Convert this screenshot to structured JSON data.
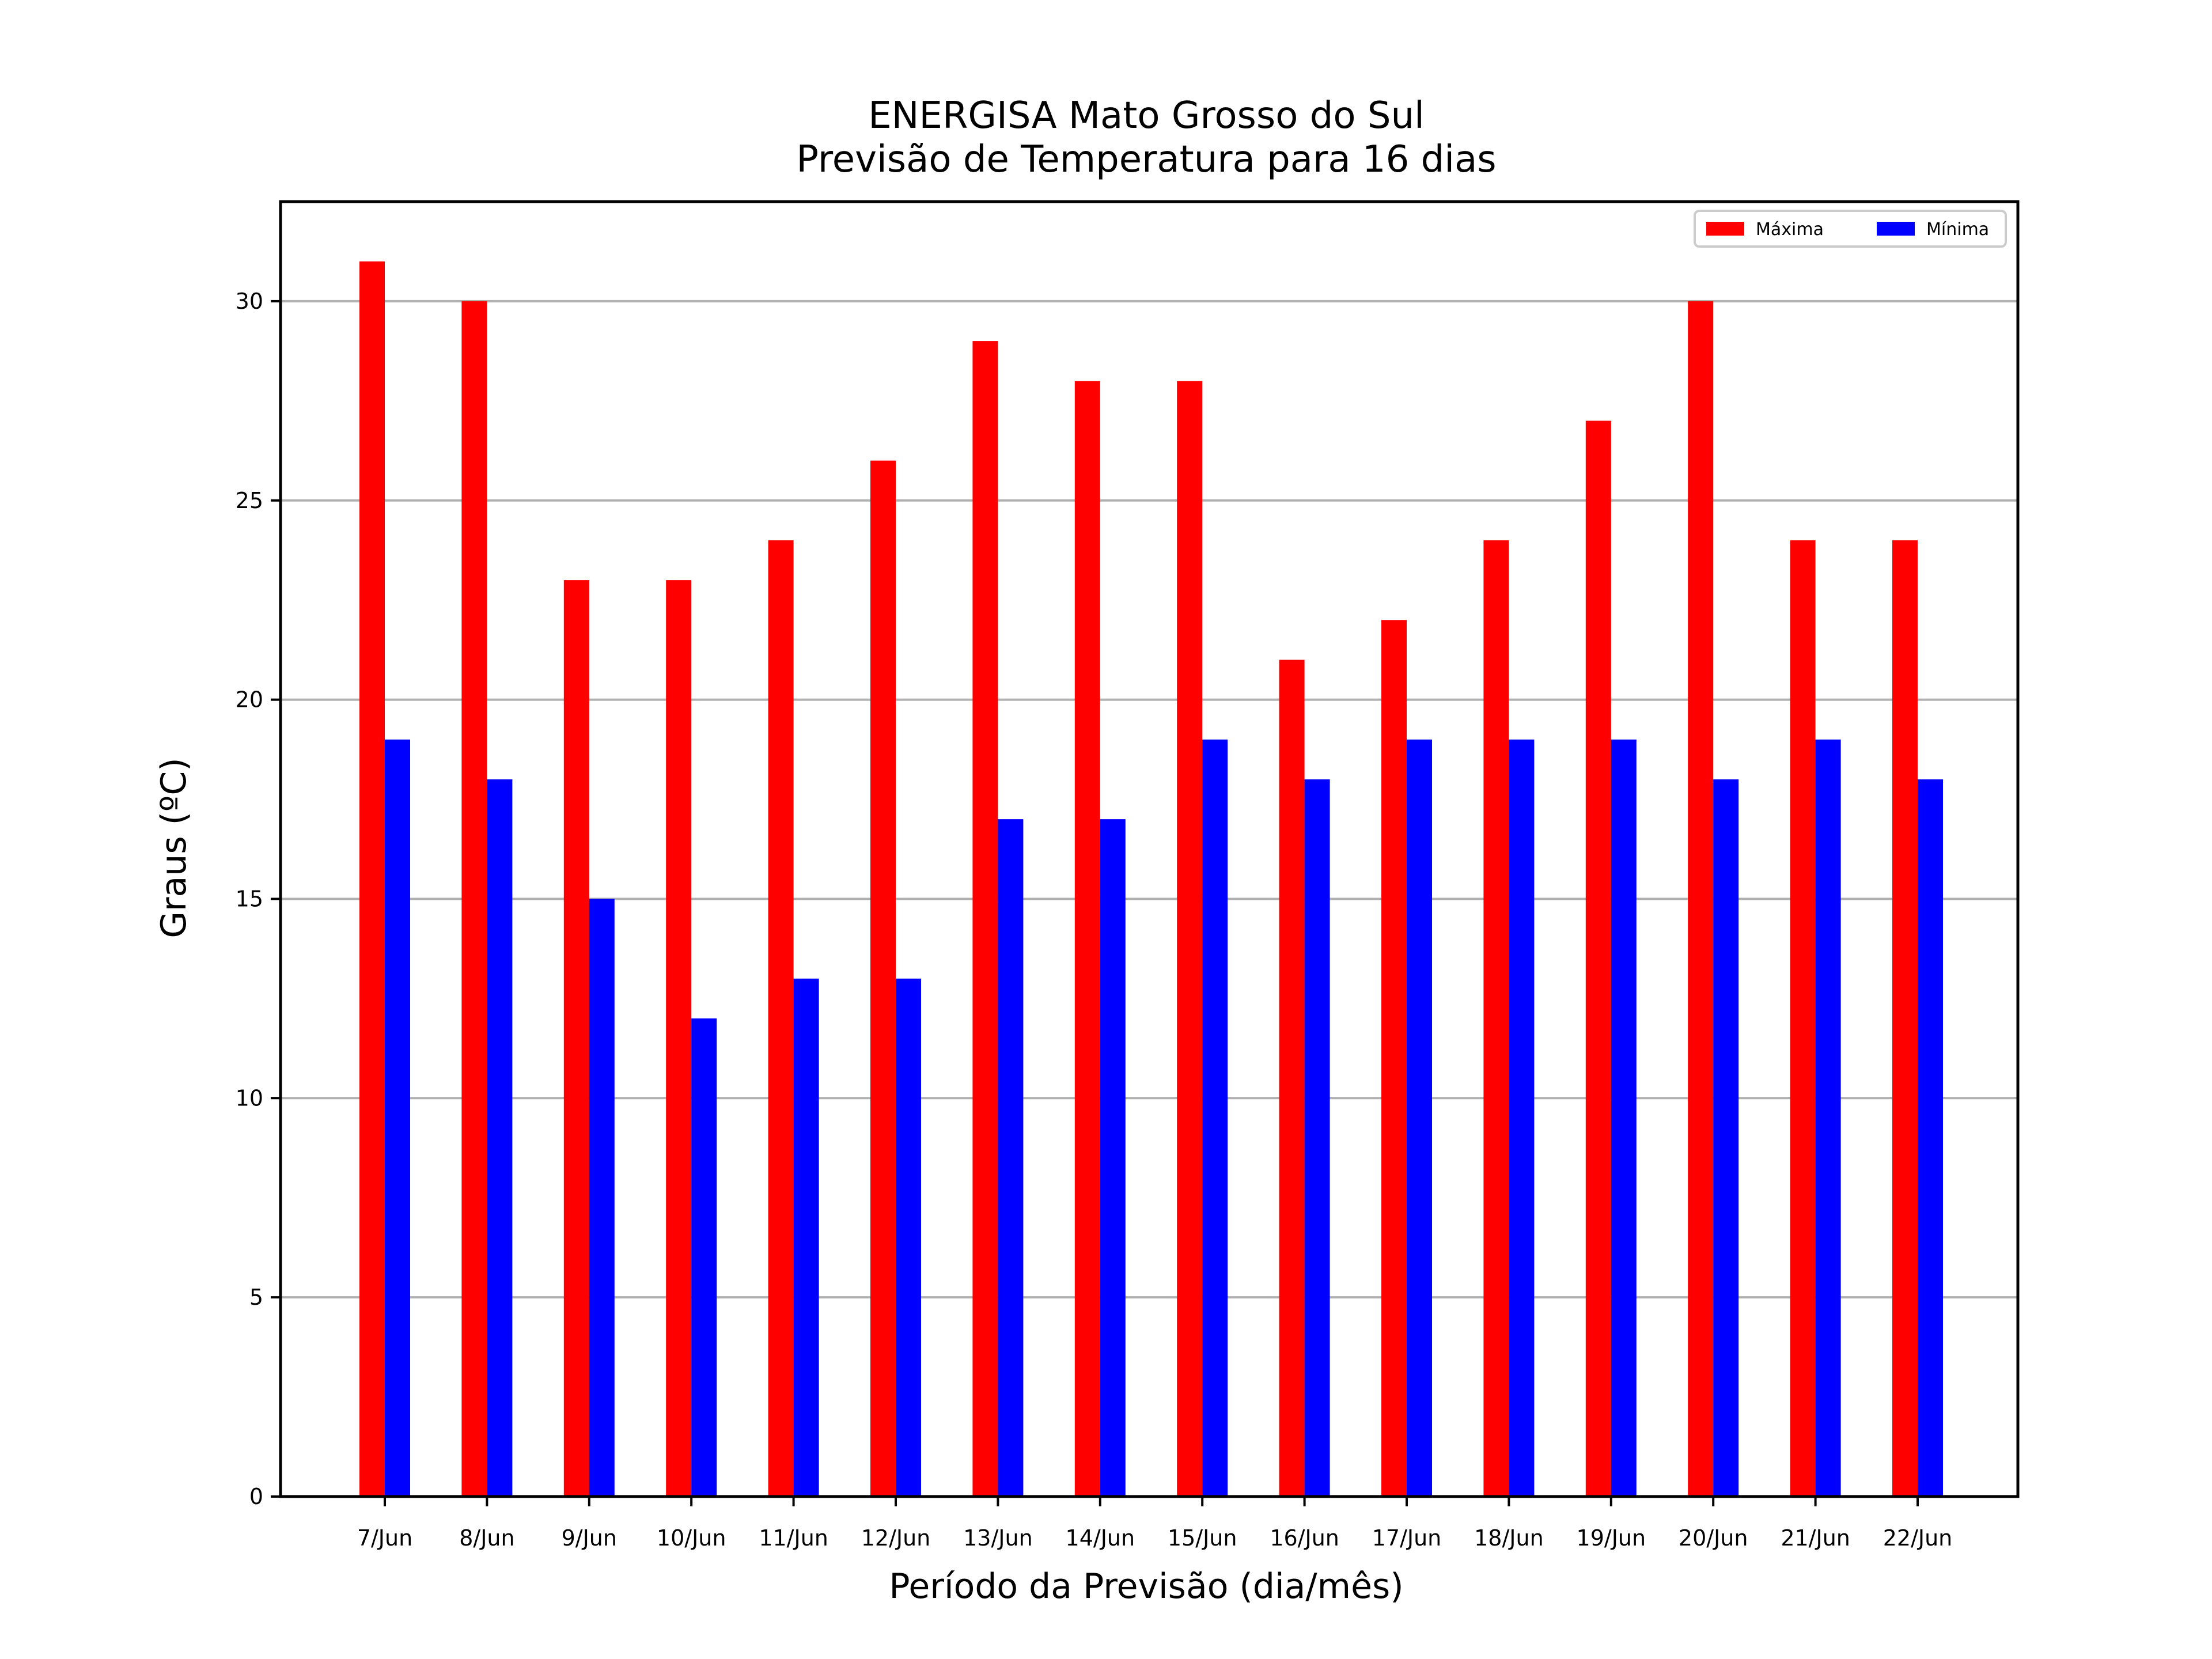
{
  "chart_data": {
    "type": "bar",
    "title": [
      "ENERGISA Mato Grosso do Sul",
      "Previsão de Temperatura para 16 dias"
    ],
    "xlabel": "Período da Previsão (dia/mês)",
    "ylabel": "Graus (ºC)",
    "ylim": [
      0,
      32.5
    ],
    "yticks": [
      0,
      5,
      10,
      15,
      20,
      25,
      30
    ],
    "grid": "horizontal",
    "legend_position": "top-right",
    "categories": [
      "7/Jun",
      "8/Jun",
      "9/Jun",
      "10/Jun",
      "11/Jun",
      "12/Jun",
      "13/Jun",
      "14/Jun",
      "15/Jun",
      "16/Jun",
      "17/Jun",
      "18/Jun",
      "19/Jun",
      "20/Jun",
      "21/Jun",
      "22/Jun"
    ],
    "series": [
      {
        "name": "Máxima",
        "color": "#ff0000",
        "values": [
          31,
          30,
          23,
          23,
          24,
          26,
          29,
          28,
          28,
          21,
          22,
          24,
          27,
          30,
          24,
          24
        ]
      },
      {
        "name": "Mínima",
        "color": "#0000ff",
        "values": [
          19,
          18,
          15,
          12,
          13,
          13,
          17,
          17,
          19,
          18,
          19,
          19,
          19,
          18,
          19,
          18
        ]
      }
    ]
  }
}
